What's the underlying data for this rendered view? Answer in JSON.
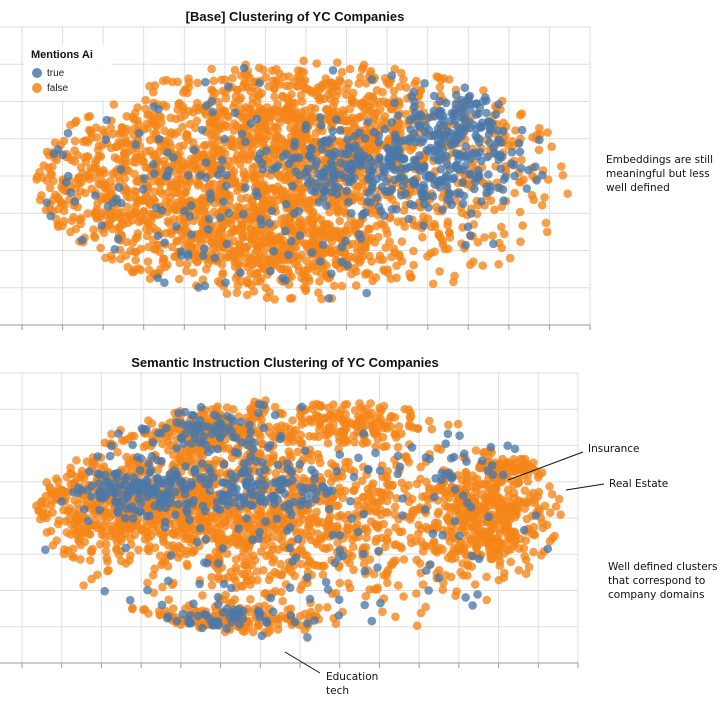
{
  "colors": {
    "ai_true": "#4c78a8",
    "ai_false": "#f58518"
  },
  "annotations": {
    "top_note": [
      "Embeddings are still",
      "meaningful but less",
      "well defined"
    ],
    "insurance": "Insurance",
    "real_estate": "Real Estate",
    "bottom_note": [
      "Well defined clusters",
      "that correspond to",
      "company domains"
    ],
    "education": [
      "Education",
      "tech"
    ]
  },
  "chart_data": [
    {
      "type": "scatter",
      "title": "[Base] Clustering of YC Companies",
      "xlabel": "",
      "ylabel": "",
      "grid": true,
      "legend": {
        "title": "Mentions Ai",
        "placement": "top-left",
        "entries": [
          {
            "label": "true",
            "color": "#4c78a8"
          },
          {
            "label": "false",
            "color": "#f58518"
          }
        ]
      },
      "series": [
        {
          "name": "true",
          "clusters": [
            {
              "center": [
                0.72,
                0.47
              ],
              "spread": [
                0.09,
                0.1
              ],
              "count": 260
            },
            {
              "center": [
                0.55,
                0.45
              ],
              "spread": [
                0.05,
                0.07
              ],
              "count": 90
            },
            {
              "center": [
                0.78,
                0.3
              ],
              "spread": [
                0.05,
                0.07
              ],
              "count": 90
            },
            {
              "center": [
                0.4,
                0.6
              ],
              "spread": [
                0.25,
                0.25
              ],
              "count": 110
            },
            {
              "center": [
                0.25,
                0.45
              ],
              "spread": [
                0.15,
                0.2
              ],
              "count": 50
            }
          ]
        },
        {
          "name": "false",
          "clusters": [
            {
              "center": [
                0.25,
                0.55
              ],
              "spread": [
                0.2,
                0.2
              ],
              "count": 1000
            },
            {
              "center": [
                0.6,
                0.5
              ],
              "spread": [
                0.2,
                0.25
              ],
              "count": 850
            },
            {
              "center": [
                0.45,
                0.78
              ],
              "spread": [
                0.1,
                0.08
              ],
              "count": 250
            },
            {
              "center": [
                0.5,
                0.28
              ],
              "spread": [
                0.12,
                0.12
              ],
              "count": 350
            }
          ]
        }
      ]
    },
    {
      "type": "scatter",
      "title": "Semantic Instruction Clustering of YC Companies",
      "xlabel": "",
      "ylabel": "",
      "grid": true,
      "legend": null,
      "series": [
        {
          "name": "true",
          "clusters": [
            {
              "center": [
                0.2,
                0.39
              ],
              "spread": [
                0.06,
                0.05
              ],
              "count": 140
            },
            {
              "center": [
                0.4,
                0.38
              ],
              "spread": [
                0.08,
                0.05
              ],
              "count": 120
            },
            {
              "center": [
                0.32,
                0.15
              ],
              "spread": [
                0.07,
                0.06
              ],
              "count": 80
            },
            {
              "center": [
                0.35,
                0.9
              ],
              "spread": [
                0.07,
                0.03
              ],
              "count": 50
            },
            {
              "center": [
                0.5,
                0.55
              ],
              "spread": [
                0.25,
                0.3
              ],
              "count": 140
            },
            {
              "center": [
                0.8,
                0.3
              ],
              "spread": [
                0.05,
                0.05
              ],
              "count": 20
            }
          ]
        },
        {
          "name": "false",
          "clusters": [
            {
              "center": [
                0.18,
                0.45
              ],
              "spread": [
                0.13,
                0.1
              ],
              "count": 600
            },
            {
              "center": [
                0.48,
                0.5
              ],
              "spread": [
                0.18,
                0.18
              ],
              "count": 900
            },
            {
              "center": [
                0.85,
                0.5
              ],
              "spread": [
                0.06,
                0.12
              ],
              "count": 400
            },
            {
              "center": [
                0.32,
                0.15
              ],
              "spread": [
                0.08,
                0.07
              ],
              "count": 250
            },
            {
              "center": [
                0.35,
                0.9
              ],
              "spread": [
                0.09,
                0.03
              ],
              "count": 150
            },
            {
              "center": [
                0.6,
                0.12
              ],
              "spread": [
                0.07,
                0.05
              ],
              "count": 150
            },
            {
              "center": [
                0.9,
                0.3
              ],
              "spread": [
                0.04,
                0.02
              ],
              "count": 60
            }
          ]
        }
      ]
    }
  ]
}
